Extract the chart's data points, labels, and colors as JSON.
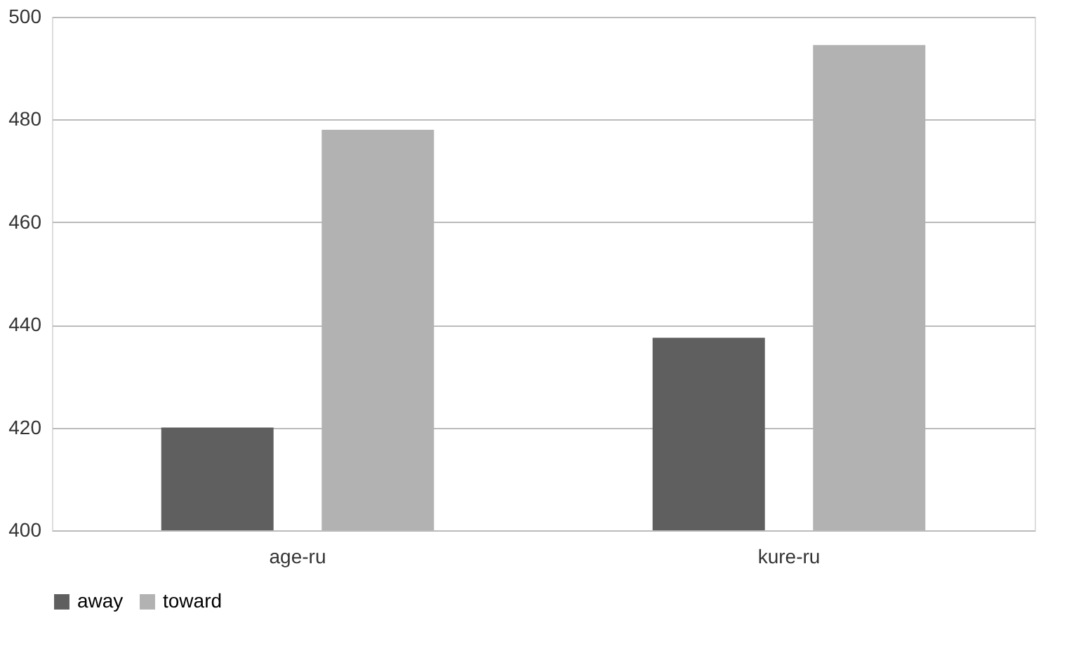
{
  "chart_data": {
    "type": "bar",
    "categories": [
      "age-ru",
      "kure-ru"
    ],
    "series": [
      {
        "name": "away",
        "color": "#5f5f5f",
        "values": [
          420,
          437.5
        ]
      },
      {
        "name": "toward",
        "color": "#b2b2b2",
        "values": [
          478,
          494.5
        ]
      }
    ],
    "ylim": [
      400,
      500
    ],
    "yticks": [
      400,
      420,
      440,
      460,
      480,
      500
    ],
    "grid": "y",
    "legend": "bottom"
  }
}
